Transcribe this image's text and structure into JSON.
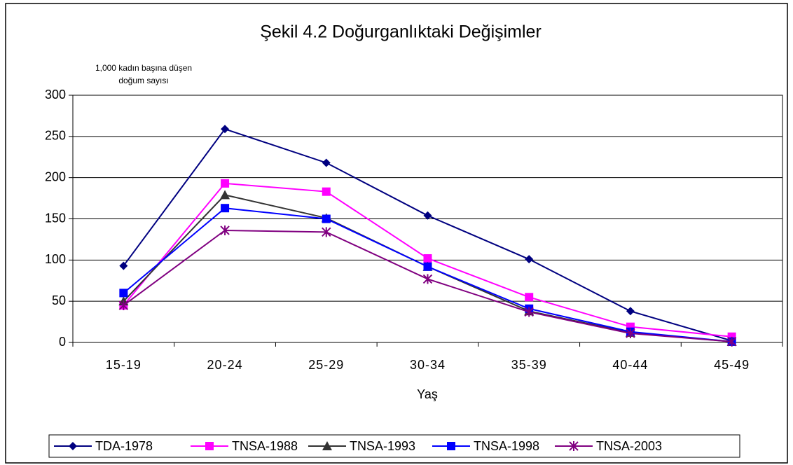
{
  "chart_data": {
    "type": "line",
    "title": "Şekil 4.2 Doğurganlıktaki Değişimler",
    "ylabel": [
      "1,000 kadın başına düşen",
      "doğum sayısı"
    ],
    "xlabel": "Yaş",
    "categories": [
      "15-19",
      "20-24",
      "25-29",
      "30-34",
      "35-39",
      "40-44",
      "45-49"
    ],
    "ylim": [
      0,
      300
    ],
    "yticks": [
      0,
      50,
      100,
      150,
      200,
      250,
      300
    ],
    "grid": true,
    "legend": "bottom",
    "series": [
      {
        "name": "TDA-1978",
        "color": "#000080",
        "marker": "diamond",
        "values": [
          93,
          259,
          218,
          154,
          101,
          38,
          2
        ]
      },
      {
        "name": "TNSA-1988",
        "color": "#ff00ff",
        "marker": "square",
        "values": [
          45,
          193,
          183,
          102,
          55,
          19,
          7
        ]
      },
      {
        "name": "TNSA-1993",
        "color": "#333333",
        "marker": "triangle",
        "values": [
          50,
          179,
          151,
          92,
          38,
          12,
          1
        ]
      },
      {
        "name": "TNSA-1998",
        "color": "#0000ff",
        "marker": "square",
        "values": [
          60,
          163,
          150,
          92,
          41,
          13,
          1
        ]
      },
      {
        "name": "TNSA-2003",
        "color": "#800080",
        "marker": "star",
        "values": [
          45,
          136,
          134,
          77,
          37,
          11,
          1
        ]
      }
    ]
  }
}
